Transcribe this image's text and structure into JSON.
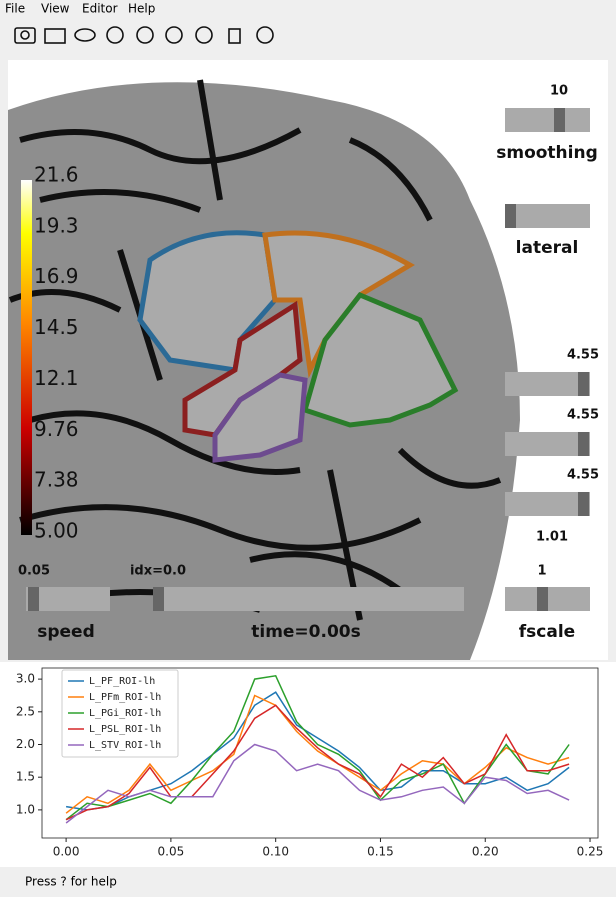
{
  "menu": [
    "File",
    "View",
    "Editor",
    "Help"
  ],
  "viewer": {
    "colorbar_ticks": [
      "21.6",
      "19.3",
      "16.9",
      "14.5",
      "12.1",
      "9.76",
      "7.38",
      "5.00"
    ],
    "smoothing_value": "10",
    "smoothing_label": "smoothing",
    "lateral_label": "lateral",
    "threshold_values": [
      "4.55",
      "4.55",
      "4.55"
    ],
    "extra_value": "1.01",
    "fscale_value": "1",
    "fscale_label": "fscale",
    "speed_value": "0.05",
    "speed_label": "speed",
    "idx_label": "idx=0.0",
    "time_label": "time=0.00s"
  },
  "chart_data": {
    "type": "line",
    "x": [
      0,
      0.01,
      0.02,
      0.03,
      0.04,
      0.05,
      0.06,
      0.07,
      0.08,
      0.09,
      0.1,
      0.11,
      0.12,
      0.13,
      0.14,
      0.15,
      0.16,
      0.17,
      0.18,
      0.19,
      0.2,
      0.21,
      0.22,
      0.23,
      0.24
    ],
    "series": [
      {
        "name": "L_PF_ROI-lh",
        "color": "#1f77b4",
        "values": [
          1.05,
          1.0,
          1.05,
          1.2,
          1.3,
          1.4,
          1.6,
          1.85,
          2.1,
          2.6,
          2.8,
          2.3,
          2.1,
          1.9,
          1.65,
          1.3,
          1.35,
          1.6,
          1.6,
          1.4,
          1.4,
          1.5,
          1.3,
          1.4,
          1.65
        ]
      },
      {
        "name": "L_PFm_ROI-lh",
        "color": "#ff7f0e",
        "values": [
          0.95,
          1.2,
          1.1,
          1.3,
          1.7,
          1.3,
          1.45,
          1.6,
          1.85,
          2.75,
          2.6,
          2.2,
          1.9,
          1.7,
          1.5,
          1.3,
          1.55,
          1.75,
          1.7,
          1.4,
          1.65,
          1.95,
          1.8,
          1.7,
          1.8
        ]
      },
      {
        "name": "L_PGi_ROI-lh",
        "color": "#2ca02c",
        "values": [
          0.85,
          1.1,
          1.05,
          1.15,
          1.25,
          1.1,
          1.45,
          1.85,
          2.2,
          3.0,
          3.05,
          2.35,
          2.0,
          1.85,
          1.6,
          1.15,
          1.45,
          1.55,
          1.7,
          1.1,
          1.55,
          2.0,
          1.6,
          1.55,
          2.0
        ]
      },
      {
        "name": "L_PSL_ROI-lh",
        "color": "#d62728",
        "values": [
          0.85,
          1.0,
          1.05,
          1.25,
          1.65,
          1.2,
          1.2,
          1.55,
          1.9,
          2.4,
          2.6,
          2.25,
          1.95,
          1.7,
          1.55,
          1.2,
          1.7,
          1.5,
          1.8,
          1.4,
          1.55,
          2.15,
          1.6,
          1.6,
          1.7
        ]
      },
      {
        "name": "L_STV_ROI-lh",
        "color": "#9467bd",
        "values": [
          0.8,
          1.05,
          1.3,
          1.2,
          1.3,
          1.2,
          1.2,
          1.2,
          1.75,
          2.0,
          1.9,
          1.6,
          1.7,
          1.6,
          1.3,
          1.15,
          1.2,
          1.3,
          1.35,
          1.1,
          1.5,
          1.45,
          1.25,
          1.3,
          1.15
        ]
      }
    ],
    "xlim": [
      -0.0115,
      0.2538
    ],
    "ylim": [
      0.57,
      3.17
    ],
    "xticks": [
      {
        "value": 0,
        "label": "0.00"
      },
      {
        "value": 0.05,
        "label": "0.05"
      },
      {
        "value": 0.1,
        "label": "0.10"
      },
      {
        "value": 0.15,
        "label": "0.15"
      },
      {
        "value": 0.2,
        "label": "0.20"
      },
      {
        "value": 0.25,
        "label": "0.25"
      }
    ],
    "yticks": [
      {
        "value": 1,
        "label": "1.0"
      },
      {
        "value": 1.5,
        "label": "1.5"
      },
      {
        "value": 2,
        "label": "2.0"
      },
      {
        "value": 2.5,
        "label": "2.5"
      },
      {
        "value": 3,
        "label": "3.0"
      }
    ],
    "legend": "upper left"
  },
  "status": "Press ? for help"
}
